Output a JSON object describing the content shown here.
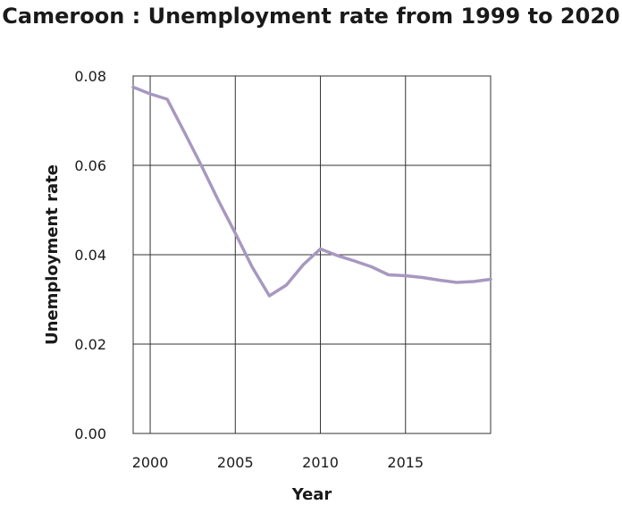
{
  "chart_data": {
    "type": "line",
    "title": "Cameroon : Unemployment rate from 1999 to 2020",
    "xlabel": "Year",
    "ylabel": "Unemployment rate",
    "xlim": [
      1999,
      2020
    ],
    "ylim": [
      0,
      0.08
    ],
    "x_ticks": [
      2000,
      2005,
      2010,
      2015
    ],
    "x_tick_labels": [
      "2000",
      "2005",
      "2010",
      "2015"
    ],
    "y_ticks": [
      0,
      0.02,
      0.04,
      0.06,
      0.08
    ],
    "y_tick_labels": [
      "0.00",
      "0.02",
      "0.04",
      "0.06",
      "0.08"
    ],
    "grid": true,
    "line_color": "#a898c0",
    "series": [
      {
        "x": [
          1999,
          2000,
          2001,
          2002,
          2003,
          2004,
          2005,
          2006,
          2007,
          2008,
          2009,
          2010,
          2011,
          2012,
          2013,
          2014,
          2015,
          2016,
          2017,
          2018,
          2019,
          2020
        ],
        "values": [
          0.0775,
          0.076,
          0.0748,
          0.0675,
          0.06,
          0.0522,
          0.0448,
          0.0372,
          0.0308,
          0.0332,
          0.0378,
          0.0413,
          0.0398,
          0.0386,
          0.0373,
          0.0355,
          0.0353,
          0.0349,
          0.0343,
          0.0338,
          0.034,
          0.0345
        ]
      }
    ]
  }
}
